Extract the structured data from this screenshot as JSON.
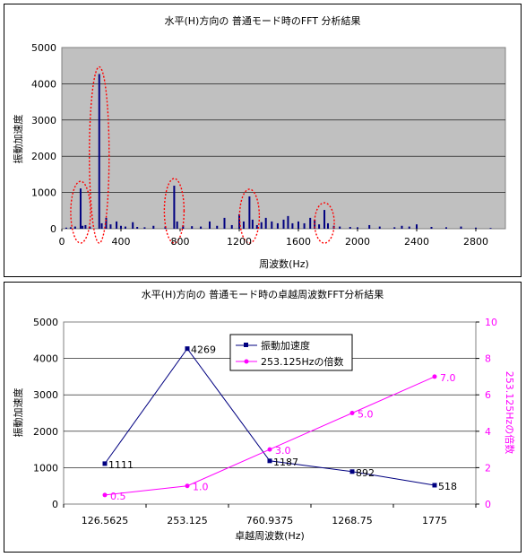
{
  "chart_data": [
    {
      "type": "bar",
      "title": "水平(H)方向の 普通モード時のFFT 分析結果",
      "xlabel": "周波数(Hz)",
      "ylabel": "振動加速度",
      "xlim": [
        0,
        3000
      ],
      "ylim": [
        0,
        5000
      ],
      "xticks": [
        "0",
        "400",
        "800",
        "1200",
        "1600",
        "2000",
        "2400",
        "2800"
      ],
      "yticks": [
        "0",
        "1000",
        "2000",
        "3000",
        "4000",
        "5000"
      ],
      "grid": true,
      "series": [
        {
          "x": [
            30,
            60,
            90,
            127,
            140,
            160,
            190,
            253,
            270,
            300,
            330,
            370,
            400,
            430,
            480,
            510,
            560,
            620,
            700,
            760,
            780,
            820,
            880,
            940,
            1000,
            1050,
            1100,
            1150,
            1200,
            1230,
            1269,
            1290,
            1320,
            1350,
            1380,
            1420,
            1460,
            1500,
            1530,
            1560,
            1600,
            1640,
            1680,
            1710,
            1740,
            1776,
            1800,
            1840,
            1880,
            1950,
            2000,
            2080,
            2150,
            2250,
            2300,
            2350,
            2400,
            2500,
            2600,
            2700,
            2800,
            2900
          ],
          "values": [
            30,
            40,
            60,
            1111,
            80,
            100,
            60,
            4269,
            150,
            300,
            120,
            200,
            80,
            60,
            180,
            50,
            40,
            80,
            60,
            1187,
            200,
            90,
            70,
            60,
            200,
            80,
            300,
            100,
            400,
            200,
            892,
            250,
            100,
            180,
            300,
            200,
            150,
            250,
            350,
            150,
            200,
            150,
            300,
            250,
            120,
            518,
            150,
            80,
            60,
            50,
            40,
            100,
            60,
            40,
            80,
            60,
            120,
            50,
            40,
            60,
            30,
            20
          ]
        }
      ],
      "highlighted_peaks_x": [
        127,
        253,
        760,
        1269,
        1776
      ]
    },
    {
      "type": "line",
      "title": "水平(H)方向の 普通モード時の卓越周波数FFT分析結果",
      "xlabel": "卓越周波数(Hz)",
      "ylabel": "振動加速度",
      "y2label": "253.125Hzの倍数",
      "categories": [
        "126.5625",
        "253.125",
        "760.9375",
        "1268.75",
        "1775"
      ],
      "ylim": [
        0,
        5000
      ],
      "y2lim": [
        0,
        10
      ],
      "yticks": [
        "0",
        "1000",
        "2000",
        "3000",
        "4000",
        "5000"
      ],
      "y2ticks": [
        "0",
        "2",
        "4",
        "6",
        "8",
        "10"
      ],
      "legend": "top-center",
      "series": [
        {
          "name": "振動加速度",
          "axis": "left",
          "color": "#000080",
          "values": [
            1111,
            4269,
            1187,
            892,
            518
          ],
          "labels": [
            "1111",
            "4269",
            "1187",
            "892",
            "518"
          ]
        },
        {
          "name": "253.125Hzの倍数",
          "axis": "right",
          "color": "#ff00ff",
          "values": [
            0.5,
            1.0,
            3.0,
            5.0,
            7.0
          ],
          "labels": [
            "0.5",
            "1.0",
            "3.0",
            "5.0",
            "7.0"
          ]
        }
      ]
    }
  ]
}
